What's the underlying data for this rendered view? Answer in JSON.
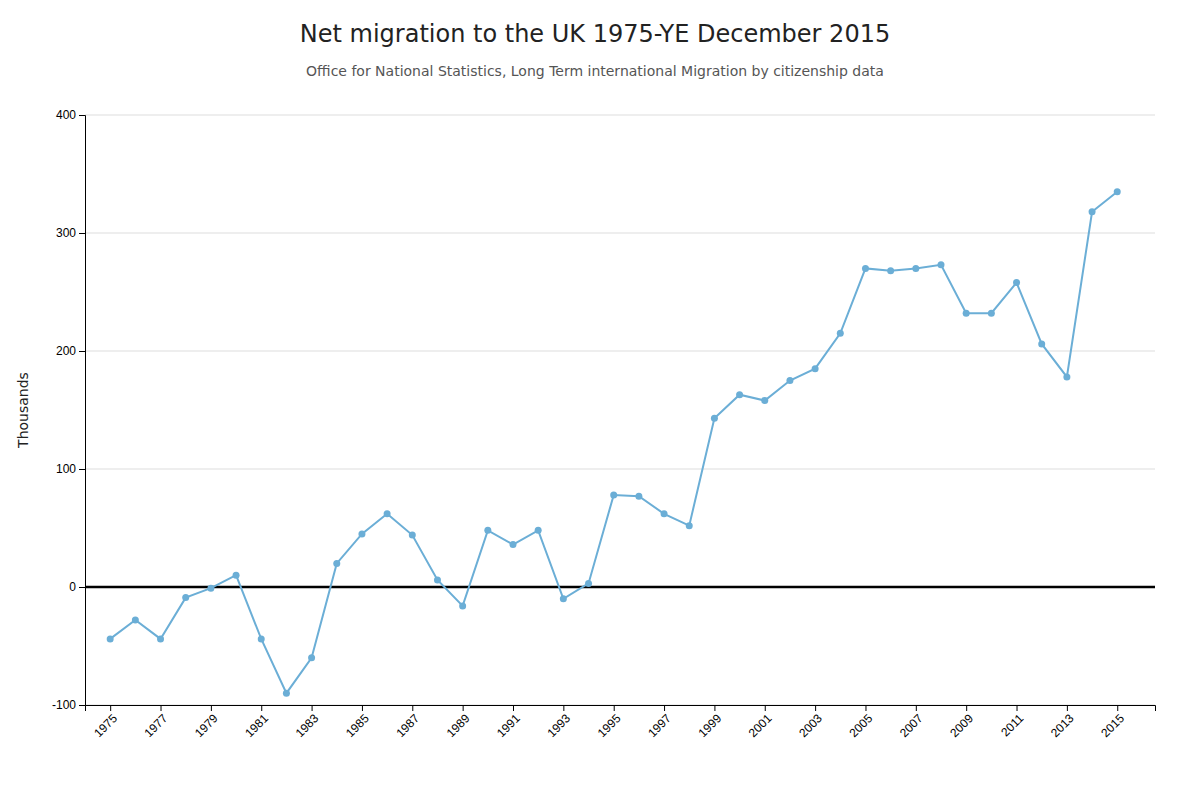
{
  "chart_data": {
    "type": "line",
    "title": "Net migration to the UK 1975-YE December 2015",
    "subtitle": "Office for National Statistics, Long Term international Migration by citizenship data",
    "y_label": "Thousands",
    "x": [
      1975,
      1976,
      1977,
      1978,
      1979,
      1980,
      1981,
      1982,
      1983,
      1984,
      1985,
      1986,
      1987,
      1988,
      1989,
      1990,
      1991,
      1992,
      1993,
      1994,
      1995,
      1996,
      1997,
      1998,
      1999,
      2000,
      2001,
      2002,
      2003,
      2004,
      2005,
      2006,
      2007,
      2008,
      2009,
      2010,
      2011,
      2012,
      2013,
      2014,
      2015
    ],
    "values": [
      -44,
      -28,
      -44,
      -9,
      -1,
      10,
      -44,
      -90,
      -60,
      20,
      45,
      62,
      44,
      6,
      -16,
      48,
      36,
      48,
      -10,
      3,
      78,
      77,
      62,
      52,
      143,
      163,
      158,
      175,
      185,
      215,
      270,
      268,
      270,
      273,
      232,
      232,
      258,
      206,
      178,
      318,
      335
    ],
    "color": "#6BAED6",
    "marker": "circle",
    "xlim": [
      1974,
      2016.5
    ],
    "xticks": [
      1975,
      1977,
      1979,
      1981,
      1983,
      1985,
      1987,
      1989,
      1991,
      1993,
      1995,
      1997,
      1999,
      2001,
      2003,
      2005,
      2007,
      2009,
      2011,
      2013,
      2015
    ],
    "ylim": [
      -100,
      400
    ],
    "yticks": [
      -100,
      0,
      100,
      200,
      300,
      400
    ],
    "grid": true
  }
}
